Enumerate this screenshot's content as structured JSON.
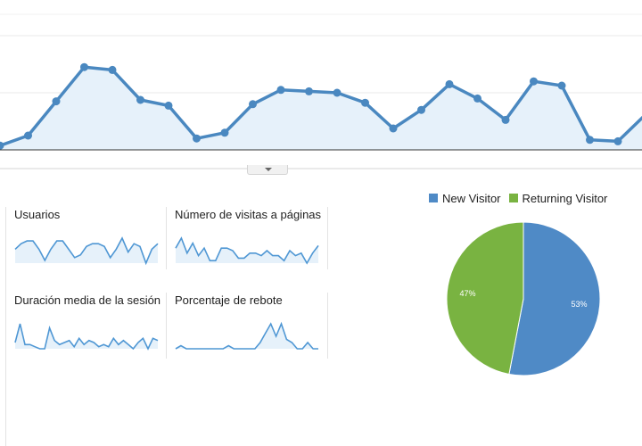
{
  "colors": {
    "line": "#4a88c0",
    "area": "#e6f1fa",
    "new_visitor": "#4f8ac6",
    "returning_visitor": "#79b341",
    "sparkline": "#4f97d4"
  },
  "main_chart": {
    "type": "area",
    "values": [
      3,
      10,
      34,
      58,
      56,
      35,
      31,
      8,
      12,
      32,
      42,
      41,
      40,
      33,
      15,
      28,
      46,
      36,
      21,
      48,
      45,
      7,
      6,
      25
    ]
  },
  "metrics": [
    {
      "label": "Usuarios",
      "values": [
        6,
        8,
        9,
        9,
        6,
        2,
        6,
        9,
        9,
        6,
        3,
        4,
        7,
        8,
        8,
        7,
        3,
        6,
        10,
        5,
        8,
        7,
        1,
        6,
        8
      ]
    },
    {
      "label": "Número de visitas a páginas",
      "values": [
        7,
        11,
        5,
        9,
        4,
        7,
        2,
        2,
        7,
        7,
        6,
        3,
        3,
        5,
        5,
        4,
        6,
        4,
        4,
        2,
        6,
        4,
        5,
        1,
        5,
        8
      ]
    },
    {
      "label": "Duración media de la sesión",
      "values": [
        4,
        13,
        3,
        3,
        2,
        1,
        1,
        11,
        5,
        3,
        4,
        5,
        2,
        6,
        3,
        5,
        4,
        2,
        3,
        2,
        6,
        3,
        5,
        3,
        1,
        4,
        6,
        1,
        6,
        5
      ]
    },
    {
      "label": "Porcentaje de rebote",
      "values": [
        1,
        2,
        1,
        1,
        1,
        1,
        1,
        1,
        1,
        1,
        2,
        1,
        1,
        1,
        1,
        1,
        3,
        6,
        9,
        5,
        9,
        4,
        3,
        1,
        1,
        3,
        1,
        1
      ]
    }
  ],
  "legend": {
    "items": [
      {
        "label": "New Visitor"
      },
      {
        "label": "Returning Visitor"
      }
    ]
  },
  "chart_data": [
    {
      "type": "area",
      "values": [
        3,
        10,
        34,
        58,
        56,
        35,
        31,
        8,
        12,
        32,
        42,
        41,
        40,
        33,
        15,
        28,
        46,
        36,
        21,
        48,
        45,
        7,
        6,
        25
      ]
    },
    {
      "type": "pie",
      "slices": [
        {
          "name": "New Visitor",
          "value": 53,
          "label": "53%"
        },
        {
          "name": "Returning Visitor",
          "value": 47,
          "label": "47%"
        }
      ],
      "legend": "top"
    }
  ]
}
